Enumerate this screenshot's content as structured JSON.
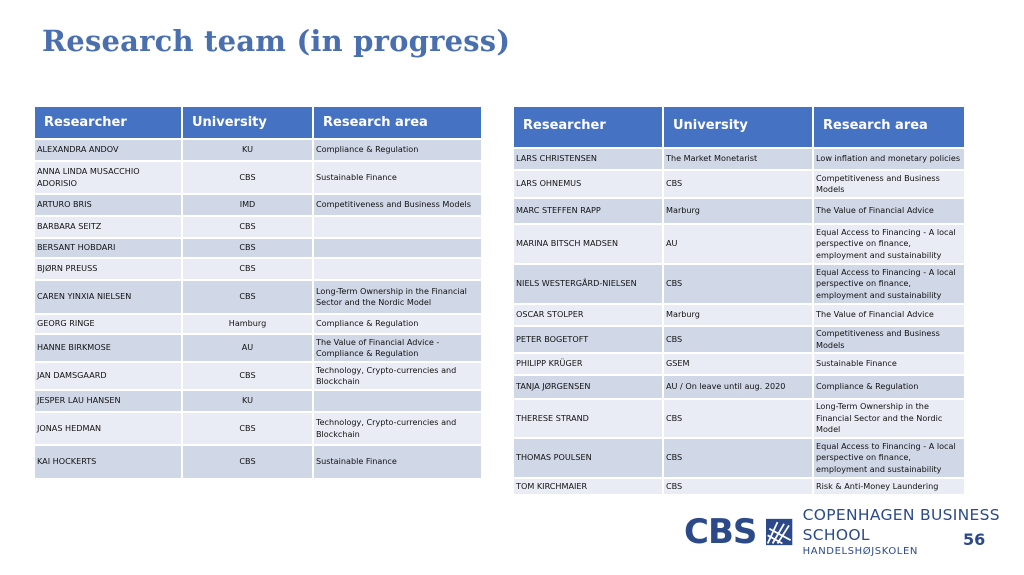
{
  "title": "Research team (in progress)",
  "left_table": {
    "headers": [
      "Researcher",
      "University",
      "Research area"
    ],
    "rows": [
      {
        "researcher": "ALEXANDRA ANDOV",
        "university": "KU",
        "area": "Compliance & Regulation"
      },
      {
        "researcher": "ANNA LINDA MUSACCHIO ADORISIO",
        "university": "CBS",
        "area": "Sustainable Finance"
      },
      {
        "researcher": "ARTURO BRIS",
        "university": "IMD",
        "area": "Competitiveness and Business Models"
      },
      {
        "researcher": "BARBARA SEITZ",
        "university": "CBS",
        "area": ""
      },
      {
        "researcher": "BERSANT HOBDARI",
        "university": "CBS",
        "area": ""
      },
      {
        "researcher": "BJØRN PREUSS",
        "university": "CBS",
        "area": ""
      },
      {
        "researcher": "CAREN YINXIA NIELSEN",
        "university": "CBS",
        "area": "Long-Term Ownership in the Financial Sector and the Nordic Model"
      },
      {
        "researcher": "GEORG RINGE",
        "university": "Hamburg",
        "area": "Compliance & Regulation"
      },
      {
        "researcher": "HANNE BIRKMOSE",
        "university": "AU",
        "area": "The Value of Financial Advice - Compliance & Regulation"
      },
      {
        "researcher": "JAN DAMSGAARD",
        "university": "CBS",
        "area": "Technology, Crypto-currencies and Blockchain"
      },
      {
        "researcher": "JESPER LAU HANSEN",
        "university": "KU",
        "area": ""
      },
      {
        "researcher": "JONAS HEDMAN",
        "university": "CBS",
        "area": "Technology, Crypto-currencies and Blockchain"
      },
      {
        "researcher": "KAI HOCKERTS",
        "university": "CBS",
        "area": "Sustainable Finance"
      }
    ]
  },
  "right_table": {
    "headers": [
      "Researcher",
      "University",
      "Research area"
    ],
    "rows": [
      {
        "researcher": "LARS CHRISTENSEN",
        "university": "The Market Monetarist",
        "area": "Low inflation and monetary policies"
      },
      {
        "researcher": "LARS OHNEMUS",
        "university": "CBS",
        "area": "Competitiveness and Business Models"
      },
      {
        "researcher": "MARC STEFFEN RAPP",
        "university": "Marburg",
        "area": "The Value of Financial Advice"
      },
      {
        "researcher": "MARINA BITSCH MADSEN",
        "university": "AU",
        "area": "Equal Access to Financing - A local perspective on finance, employment and sustainability"
      },
      {
        "researcher": "NIELS WESTERGÅRD-NIELSEN",
        "university": "CBS",
        "area": "Equal Access to Financing - A local perspective on finance, employment and sustainability"
      },
      {
        "researcher": "OSCAR STOLPER",
        "university": "Marburg",
        "area": "The Value of Financial Advice"
      },
      {
        "researcher": "PETER BOGETOFT",
        "university": "CBS",
        "area": "Competitiveness and Business Models"
      },
      {
        "researcher": "PHILIPP KRÜGER",
        "university": "GSEM",
        "area": "Sustainable Finance"
      },
      {
        "researcher": "TANJA JØRGENSEN",
        "university": "AU / On leave until aug. 2020",
        "area": "Compliance & Regulation"
      },
      {
        "researcher": "THERESE STRAND",
        "university": "CBS",
        "area": "Long-Term Ownership in the Financial Sector and the Nordic Model"
      },
      {
        "researcher": "THOMAS POULSEN",
        "university": "CBS",
        "area": "Equal Access to Financing - A local perspective on finance, employment and sustainability"
      },
      {
        "researcher": "TOM KIRCHMAIER",
        "university": "CBS",
        "area": "Risk & Anti-Money Laundering"
      }
    ]
  },
  "logo": {
    "letters": "CBS",
    "school_name": "COPENHAGEN BUSINESS SCHOOL",
    "school_sub": "HANDELSHØJSKOLEN",
    "color": "#2c4a8a"
  },
  "page_number": "56",
  "colors": {
    "header_bg": "#4672c4",
    "row_odd": "#d0d7e7",
    "row_even": "#e9ecf4",
    "title": "#4a6fae"
  }
}
